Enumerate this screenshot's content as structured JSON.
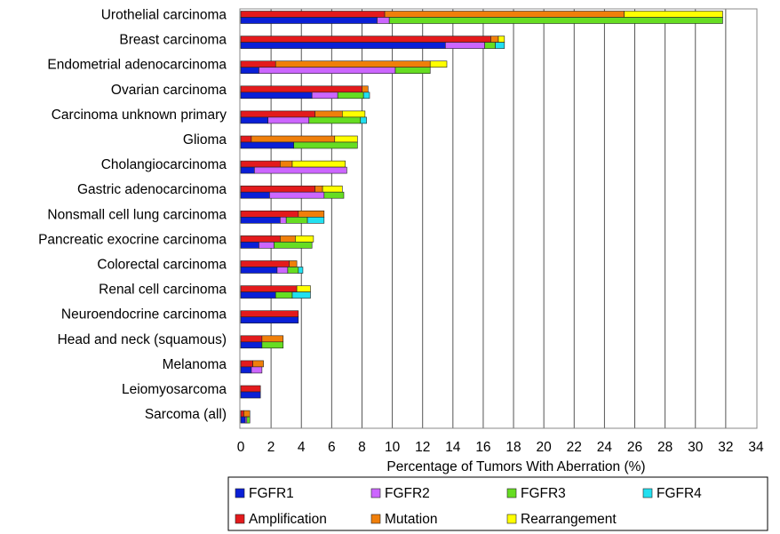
{
  "chart_data": {
    "type": "bar",
    "orientation": "horizontal",
    "stacked": true,
    "xlabel": "Percentage of Tumors With Aberration (%)",
    "ylabel": "",
    "xlim": [
      0,
      34
    ],
    "xticks": [
      0,
      2,
      4,
      6,
      8,
      10,
      12,
      14,
      16,
      18,
      20,
      22,
      24,
      26,
      28,
      30,
      32,
      34
    ],
    "grid": "vertical",
    "legend_position": "bottom",
    "categories": [
      "Urothelial carcinoma",
      "Breast carcinoma",
      "Endometrial adenocarcinoma",
      "Ovarian carcinoma",
      "Carcinoma unknown primary",
      "Glioma",
      "Cholangiocarcinoma",
      "Gastric adenocarcinoma",
      "Nonsmall cell lung carcinoma",
      "Pancreatic exocrine carcinoma",
      "Colorectal carcinoma",
      "Renal cell carcinoma",
      "Neuroendocrine carcinoma",
      "Head and neck (squamous)",
      "Melanoma",
      "Leiomyosarcoma",
      "Sarcoma (all)"
    ],
    "aberration_type_bars": {
      "series": [
        {
          "name": "Amplification",
          "color": "#e31a1c",
          "values": [
            9.5,
            16.5,
            2.3,
            8.0,
            4.9,
            0.7,
            2.6,
            4.9,
            3.8,
            2.6,
            3.2,
            3.7,
            3.8,
            1.4,
            0.8,
            1.3,
            0.2
          ]
        },
        {
          "name": "Mutation",
          "color": "#f07f0a",
          "values": [
            15.8,
            0.5,
            10.2,
            0.4,
            1.8,
            5.5,
            0.8,
            0.5,
            1.7,
            1.0,
            0.5,
            0.0,
            0.0,
            1.4,
            0.7,
            0.0,
            0.4
          ]
        },
        {
          "name": "Rearrangement",
          "color": "#ffff00",
          "values": [
            6.5,
            0.4,
            1.1,
            0.0,
            1.5,
            1.5,
            3.5,
            1.3,
            0.0,
            1.2,
            0.0,
            0.9,
            0.0,
            0.0,
            0.0,
            0.0,
            0.0
          ]
        }
      ]
    },
    "gene_bars": {
      "series": [
        {
          "name": "FGFR1",
          "color": "#0a1fd6",
          "values": [
            9.0,
            13.5,
            1.2,
            4.7,
            1.8,
            3.5,
            0.9,
            1.9,
            2.6,
            1.2,
            2.4,
            2.3,
            3.8,
            1.4,
            0.7,
            1.3,
            0.3
          ]
        },
        {
          "name": "FGFR2",
          "color": "#cc66ff",
          "values": [
            0.8,
            2.6,
            9.0,
            1.7,
            2.7,
            0.0,
            6.1,
            3.6,
            0.4,
            1.0,
            0.7,
            0.0,
            0.0,
            0.0,
            0.7,
            0.0,
            0.1
          ]
        },
        {
          "name": "FGFR3",
          "color": "#66dd22",
          "values": [
            22.0,
            0.7,
            2.3,
            1.7,
            3.4,
            4.2,
            0.0,
            1.3,
            1.4,
            2.5,
            0.7,
            1.1,
            0.0,
            1.4,
            0.0,
            0.0,
            0.2
          ]
        },
        {
          "name": "FGFR4",
          "color": "#22e0f0",
          "values": [
            0.0,
            0.6,
            0.0,
            0.4,
            0.4,
            0.0,
            0.0,
            0.0,
            1.1,
            0.0,
            0.3,
            1.2,
            0.0,
            0.0,
            0.0,
            0.0,
            0.0
          ]
        }
      ]
    },
    "legend": [
      {
        "label": "FGFR1",
        "color": "#0a1fd6"
      },
      {
        "label": "FGFR2",
        "color": "#cc66ff"
      },
      {
        "label": "FGFR3",
        "color": "#66dd22"
      },
      {
        "label": "FGFR4",
        "color": "#22e0f0"
      },
      {
        "label": "Amplification",
        "color": "#e31a1c"
      },
      {
        "label": "Mutation",
        "color": "#f07f0a"
      },
      {
        "label": "Rearrangement",
        "color": "#ffff00"
      }
    ]
  }
}
